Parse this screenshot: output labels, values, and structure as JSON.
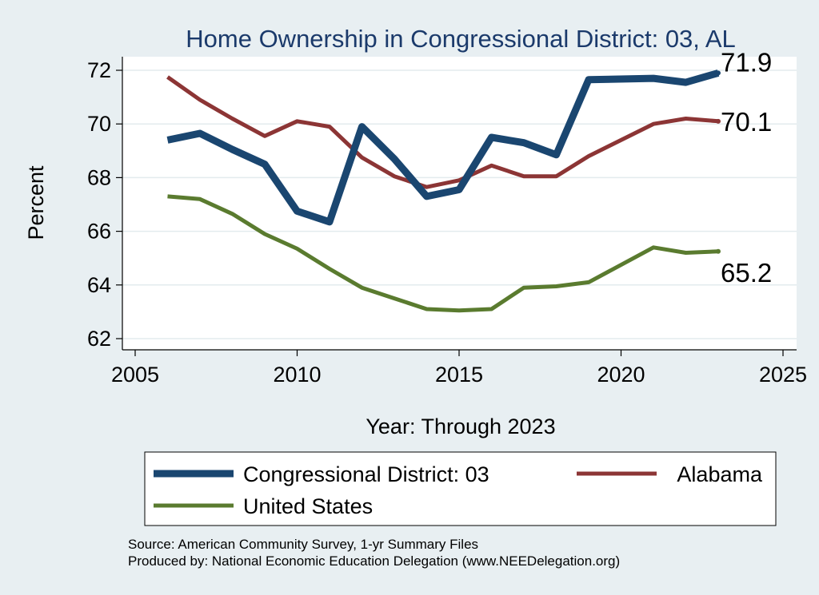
{
  "chart_data": {
    "type": "line",
    "title": "Home Ownership in Congressional District:  03, AL",
    "xlabel": "Year: Through 2023",
    "ylabel": "Percent",
    "xlim": [
      2005,
      2025
    ],
    "ylim": [
      62,
      72
    ],
    "xticks": [
      2005,
      2010,
      2015,
      2020,
      2025
    ],
    "yticks": [
      62,
      64,
      66,
      68,
      70,
      72
    ],
    "grid": true,
    "legend_position": "bottom",
    "series": [
      {
        "name": "Congressional District:  03",
        "color": "#1a4670",
        "x": [
          2006,
          2007,
          2008,
          2009,
          2010,
          2011,
          2012,
          2013,
          2014,
          2015,
          2016,
          2017,
          2018,
          2019,
          2021,
          2022,
          2023
        ],
        "y": [
          69.4,
          69.65,
          69.05,
          68.5,
          66.75,
          66.35,
          69.9,
          68.7,
          67.3,
          67.55,
          69.5,
          69.3,
          68.85,
          71.65,
          71.7,
          71.55,
          71.9
        ],
        "end_label": "71.9"
      },
      {
        "name": "Alabama",
        "color": "#8c3535",
        "x": [
          2006,
          2007,
          2008,
          2009,
          2010,
          2011,
          2012,
          2013,
          2014,
          2015,
          2016,
          2017,
          2018,
          2019,
          2021,
          2022,
          2023
        ],
        "y": [
          71.75,
          70.9,
          70.2,
          69.55,
          70.1,
          69.9,
          68.75,
          68.05,
          67.65,
          67.9,
          68.45,
          68.05,
          68.05,
          68.8,
          70.0,
          70.2,
          70.1
        ],
        "end_label": "70.1"
      },
      {
        "name": "United States",
        "color": "#5a7b2f",
        "x": [
          2006,
          2007,
          2008,
          2009,
          2010,
          2011,
          2012,
          2013,
          2014,
          2015,
          2016,
          2017,
          2018,
          2019,
          2021,
          2022,
          2023
        ],
        "y": [
          67.3,
          67.2,
          66.65,
          65.9,
          65.35,
          64.6,
          63.9,
          63.5,
          63.1,
          63.05,
          63.1,
          63.9,
          63.95,
          64.1,
          65.4,
          65.2,
          65.25
        ],
        "end_label": "65.2"
      }
    ]
  },
  "source_lines": [
    "Source: American Community Survey, 1-yr Summary Files",
    "Produced by: National Economic Education Delegation (www.NEEDelegation.org)"
  ]
}
